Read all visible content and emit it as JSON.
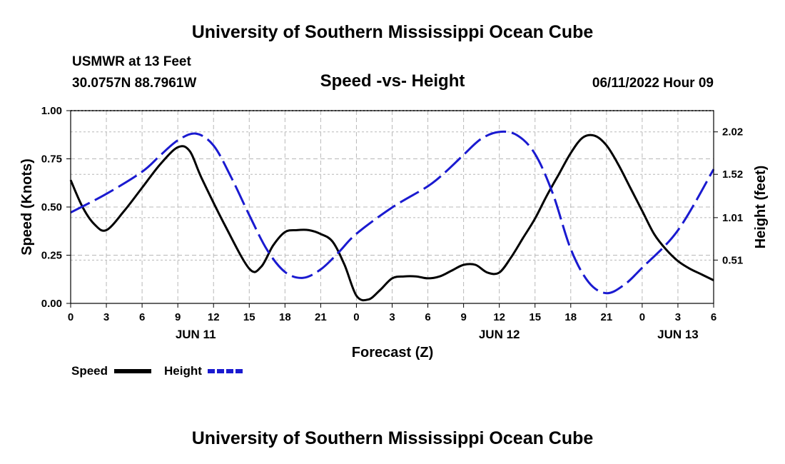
{
  "header": {
    "title": "University of Southern Mississippi Ocean Cube",
    "station": "USMWR at 13 Feet",
    "coords": "30.0757N  88.7961W",
    "subtitle": "Speed -vs- Height",
    "datetime": "06/11/2022 Hour 09"
  },
  "footer": {
    "title": "University of Southern Mississippi Ocean Cube"
  },
  "colors": {
    "speed": "#000000",
    "height": "#1a1ad0",
    "grid": "#b8b8b8"
  },
  "chart_data": {
    "type": "line",
    "title": "Speed -vs- Height",
    "xlabel": "Forecast (Z)",
    "ylabel": "Speed (Knots)",
    "y2label": "Height (feet)",
    "xlim": [
      0,
      54
    ],
    "ylim": [
      0,
      1.0
    ],
    "y2lim": [
      0,
      2.27
    ],
    "x_ticks": [
      0,
      3,
      6,
      9,
      12,
      15,
      18,
      21,
      24,
      27,
      30,
      33,
      36,
      39,
      42,
      45,
      48,
      51,
      54
    ],
    "x_tick_labels": [
      "0",
      "3",
      "6",
      "9",
      "12",
      "15",
      "18",
      "21",
      "0",
      "3",
      "6",
      "9",
      "12",
      "15",
      "18",
      "21",
      "0",
      "3",
      "6"
    ],
    "day_labels": [
      {
        "label": "JUN 11",
        "x": 10.5
      },
      {
        "label": "JUN 12",
        "x": 36
      },
      {
        "label": "JUN 13",
        "x": 51
      }
    ],
    "y_ticks": [
      0,
      0.25,
      0.5,
      0.75,
      1.0
    ],
    "y_tick_labels": [
      "0.00",
      "0.25",
      "0.50",
      "0.75",
      "1.00"
    ],
    "y2_ticks": [
      0.51,
      1.01,
      1.52,
      2.02
    ],
    "y2_tick_labels": [
      "0.51",
      "1.01",
      "1.52",
      "2.02"
    ],
    "legend": [
      {
        "name": "Speed",
        "color": "#000000",
        "dash": "solid"
      },
      {
        "name": "Height",
        "color": "#1a1ad0",
        "dash": "dashed"
      }
    ],
    "series": [
      {
        "name": "Speed",
        "axis": "left",
        "x": [
          0,
          1,
          2,
          3,
          4.5,
          6,
          7.5,
          9,
          10,
          11,
          13,
          15,
          16,
          17,
          18,
          19,
          20,
          21,
          22,
          23,
          24,
          25,
          26,
          27,
          28,
          29,
          30,
          31,
          32,
          33,
          34,
          35,
          36,
          37,
          38,
          39,
          40,
          41,
          42,
          43,
          44,
          45,
          46,
          47,
          48,
          49,
          50,
          51,
          52,
          53,
          54
        ],
        "values": [
          0.64,
          0.5,
          0.41,
          0.38,
          0.48,
          0.6,
          0.72,
          0.81,
          0.79,
          0.65,
          0.4,
          0.18,
          0.19,
          0.3,
          0.37,
          0.38,
          0.38,
          0.36,
          0.32,
          0.2,
          0.04,
          0.02,
          0.07,
          0.13,
          0.14,
          0.14,
          0.13,
          0.14,
          0.17,
          0.2,
          0.2,
          0.16,
          0.16,
          0.24,
          0.34,
          0.44,
          0.56,
          0.67,
          0.78,
          0.86,
          0.87,
          0.82,
          0.72,
          0.6,
          0.48,
          0.36,
          0.28,
          0.22,
          0.18,
          0.15,
          0.12
        ]
      },
      {
        "name": "Height",
        "axis": "right",
        "x": [
          0,
          3,
          6,
          7.5,
          9,
          10.5,
          12,
          13.5,
          15,
          16.5,
          18,
          19.5,
          21,
          22.5,
          24,
          27,
          30,
          31.5,
          33,
          34.5,
          36,
          37.5,
          39,
          40.5,
          42,
          43.5,
          45,
          46.5,
          48,
          51,
          54
        ],
        "values": [
          1.07,
          1.29,
          1.55,
          1.74,
          1.92,
          2.0,
          1.86,
          1.48,
          1.04,
          0.63,
          0.37,
          0.3,
          0.4,
          0.6,
          0.82,
          1.13,
          1.38,
          1.55,
          1.75,
          1.94,
          2.02,
          1.98,
          1.76,
          1.29,
          0.64,
          0.25,
          0.12,
          0.22,
          0.42,
          0.86,
          1.58
        ]
      }
    ]
  }
}
